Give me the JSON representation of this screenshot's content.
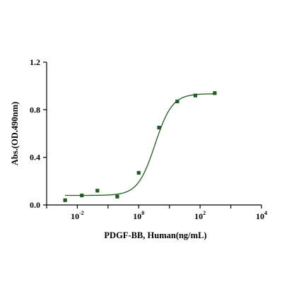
{
  "chart_data": {
    "type": "scatter",
    "xlabel": "PDGF-BB, Human(ng/mL)",
    "ylabel": "Abs.(OD.490nm)",
    "x_scale": "log10",
    "xlim": [
      0.001,
      10000
    ],
    "ylim": [
      0,
      1.2
    ],
    "x_ticks": [
      {
        "base": "10",
        "exp": "-2",
        "value": 0.01
      },
      {
        "base": "10",
        "exp": "0",
        "value": 1
      },
      {
        "base": "10",
        "exp": "2",
        "value": 100
      },
      {
        "base": "10",
        "exp": "4",
        "value": 10000
      }
    ],
    "y_ticks": [
      "0.0",
      "0.4",
      "0.8",
      "1.2"
    ],
    "grid": false,
    "legend": "none",
    "colors": {
      "series": "#1f5c1f",
      "axis": "#000000"
    },
    "series": [
      {
        "points": [
          {
            "x": 0.004,
            "y": 0.04
          },
          {
            "x": 0.014,
            "y": 0.08
          },
          {
            "x": 0.045,
            "y": 0.12
          },
          {
            "x": 0.2,
            "y": 0.07
          },
          {
            "x": 1.0,
            "y": 0.27
          },
          {
            "x": 4.6,
            "y": 0.65
          },
          {
            "x": 18,
            "y": 0.87
          },
          {
            "x": 70,
            "y": 0.92
          },
          {
            "x": 300,
            "y": 0.94
          }
        ],
        "fit_curve": {
          "model": "4PL",
          "bottom": 0.08,
          "top": 0.935,
          "log_ec50": 0.53,
          "hill": 1.55,
          "x_range": [
            0.004,
            300
          ]
        }
      }
    ]
  }
}
